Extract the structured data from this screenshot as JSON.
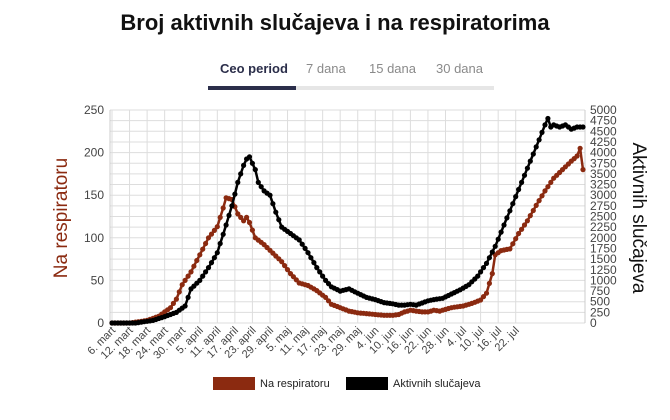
{
  "title": "Broj aktivnih slučajeva i na respiratorima",
  "tabs": [
    {
      "label": "Ceo period",
      "active": true
    },
    {
      "label": "7 dana",
      "active": false
    },
    {
      "label": "15 dana",
      "active": false
    },
    {
      "label": "30 dana",
      "active": false
    }
  ],
  "colors": {
    "respirator": "#8b2a10",
    "active": "#000000",
    "grid": "#dddddd",
    "tab_accent": "#2b2e4a"
  },
  "chart_data": {
    "type": "line",
    "title": "Broj aktivnih slučajeva i na respiratorima",
    "ylabel_left": "Na respiratoru",
    "ylabel_right": "Aktivnih slučajeva",
    "ylim_left": [
      0,
      250
    ],
    "ylim_right": [
      0,
      5000
    ],
    "yticks_left": [
      "0",
      "50",
      "100",
      "150",
      "200",
      "250"
    ],
    "yticks_right": [
      "0",
      "250",
      "500",
      "750",
      "1000",
      "1250",
      "1500",
      "1750",
      "2000",
      "2250",
      "2500",
      "2750",
      "3000",
      "3250",
      "3500",
      "3750",
      "4000",
      "4250",
      "4500",
      "4750",
      "5000"
    ],
    "x_tick_labels": [
      "6. mart",
      "12. mart",
      "18. mart",
      "24. mart",
      "30. mart",
      "5. april",
      "11. april",
      "17. april",
      "23. april",
      "29. april",
      "5. maj",
      "11. maj",
      "17. maj",
      "23. maj",
      "29. maj",
      "4. jun",
      "10. jun",
      "16. jun",
      "22. jun",
      "28. jun",
      "4. jul",
      "10. jul",
      "16. jul",
      "22. jul"
    ],
    "grid": true,
    "legend_position": "bottom",
    "series": [
      {
        "name": "Na respiratoru",
        "axis": "left",
        "color": "#8b2a10",
        "points": [
          [
            0,
            0
          ],
          [
            6,
            0
          ],
          [
            12,
            3
          ],
          [
            16,
            8
          ],
          [
            20,
            18
          ],
          [
            22,
            28
          ],
          [
            24,
            45
          ],
          [
            27,
            60
          ],
          [
            30,
            80
          ],
          [
            33,
            100
          ],
          [
            36,
            113
          ],
          [
            38,
            135
          ],
          [
            39,
            147
          ],
          [
            41,
            145
          ],
          [
            43,
            128
          ],
          [
            45,
            120
          ],
          [
            46,
            124
          ],
          [
            47,
            118
          ],
          [
            49,
            100
          ],
          [
            52,
            92
          ],
          [
            55,
            82
          ],
          [
            58,
            72
          ],
          [
            61,
            58
          ],
          [
            64,
            47
          ],
          [
            67,
            44
          ],
          [
            70,
            38
          ],
          [
            73,
            30
          ],
          [
            75,
            22
          ],
          [
            78,
            18
          ],
          [
            81,
            14
          ],
          [
            84,
            12
          ],
          [
            87,
            11
          ],
          [
            90,
            10
          ],
          [
            93,
            9
          ],
          [
            96,
            9
          ],
          [
            98,
            10
          ],
          [
            100,
            13
          ],
          [
            102,
            15
          ],
          [
            104,
            14
          ],
          [
            106,
            13
          ],
          [
            108,
            13
          ],
          [
            110,
            15
          ],
          [
            112,
            14
          ],
          [
            114,
            16
          ],
          [
            116,
            18
          ],
          [
            118,
            19
          ],
          [
            120,
            20
          ],
          [
            123,
            23
          ],
          [
            126,
            27
          ],
          [
            128,
            35
          ],
          [
            130,
            58
          ],
          [
            131,
            80
          ],
          [
            133,
            85
          ],
          [
            136,
            87
          ],
          [
            139,
            105
          ],
          [
            142,
            120
          ],
          [
            145,
            138
          ],
          [
            148,
            155
          ],
          [
            151,
            170
          ],
          [
            154,
            180
          ],
          [
            157,
            190
          ],
          [
            159,
            196
          ],
          [
            160,
            205
          ],
          [
            161,
            180
          ]
        ]
      },
      {
        "name": "Aktivnih slučajeva",
        "axis": "right",
        "color": "#000000",
        "points": [
          [
            0,
            0
          ],
          [
            8,
            0
          ],
          [
            14,
            60
          ],
          [
            18,
            150
          ],
          [
            22,
            250
          ],
          [
            25,
            400
          ],
          [
            27,
            800
          ],
          [
            30,
            1000
          ],
          [
            33,
            1300
          ],
          [
            36,
            1650
          ],
          [
            39,
            2300
          ],
          [
            41,
            2750
          ],
          [
            43,
            3300
          ],
          [
            45,
            3700
          ],
          [
            46,
            3850
          ],
          [
            47,
            3900
          ],
          [
            48,
            3750
          ],
          [
            49,
            3600
          ],
          [
            50,
            3300
          ],
          [
            52,
            3100
          ],
          [
            54,
            3000
          ],
          [
            56,
            2600
          ],
          [
            58,
            2250
          ],
          [
            61,
            2100
          ],
          [
            64,
            1950
          ],
          [
            67,
            1650
          ],
          [
            70,
            1300
          ],
          [
            73,
            1000
          ],
          [
            75,
            850
          ],
          [
            78,
            750
          ],
          [
            81,
            800
          ],
          [
            84,
            700
          ],
          [
            87,
            600
          ],
          [
            90,
            550
          ],
          [
            93,
            480
          ],
          [
            96,
            450
          ],
          [
            98,
            420
          ],
          [
            100,
            420
          ],
          [
            102,
            440
          ],
          [
            104,
            420
          ],
          [
            106,
            470
          ],
          [
            108,
            520
          ],
          [
            110,
            550
          ],
          [
            113,
            580
          ],
          [
            116,
            680
          ],
          [
            119,
            780
          ],
          [
            122,
            900
          ],
          [
            125,
            1100
          ],
          [
            128,
            1400
          ],
          [
            131,
            1800
          ],
          [
            134,
            2300
          ],
          [
            137,
            2800
          ],
          [
            140,
            3300
          ],
          [
            143,
            3800
          ],
          [
            146,
            4300
          ],
          [
            148,
            4650
          ],
          [
            149,
            4800
          ],
          [
            150,
            4600
          ],
          [
            151,
            4650
          ],
          [
            153,
            4600
          ],
          [
            155,
            4650
          ],
          [
            157,
            4550
          ],
          [
            159,
            4600
          ],
          [
            160,
            4600
          ]
        ]
      }
    ]
  },
  "legend": [
    {
      "label": "Na respiratoru",
      "color": "#8b2a10"
    },
    {
      "label": "Aktivnih slučajeva",
      "color": "#000000"
    }
  ]
}
